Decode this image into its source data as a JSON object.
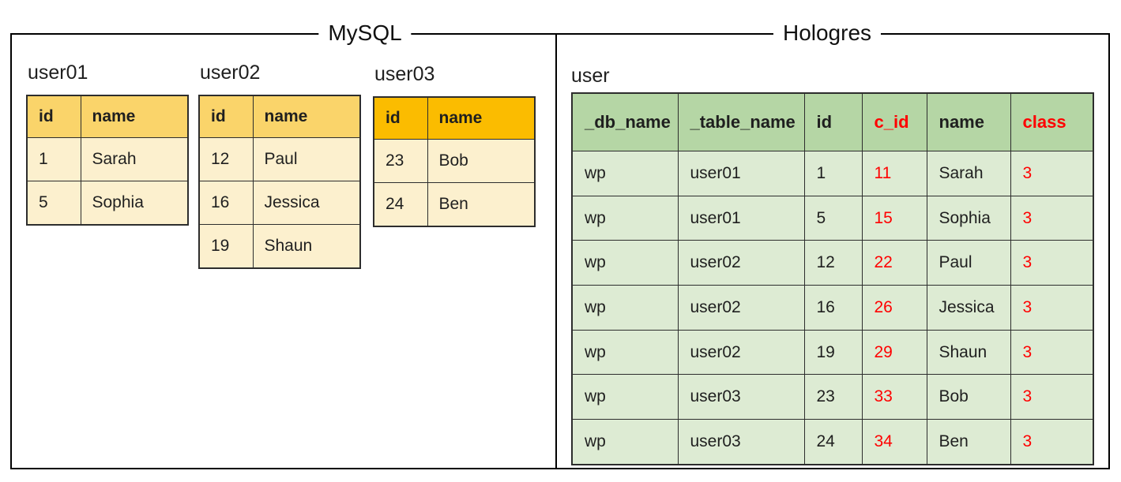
{
  "mysql": {
    "title": "MySQL",
    "tables": [
      {
        "name": "user01",
        "header_style": "light",
        "columns": [
          "id",
          "name"
        ],
        "rows": [
          [
            "1",
            "Sarah"
          ],
          [
            "5",
            "Sophia"
          ]
        ]
      },
      {
        "name": "user02",
        "header_style": "light",
        "columns": [
          "id",
          "name"
        ],
        "rows": [
          [
            "12",
            "Paul"
          ],
          [
            "16",
            "Jessica"
          ],
          [
            "19",
            "Shaun"
          ]
        ]
      },
      {
        "name": "user03",
        "header_style": "dark",
        "columns": [
          "id",
          "name"
        ],
        "rows": [
          [
            "23",
            "Bob"
          ],
          [
            "24",
            "Ben"
          ]
        ]
      }
    ]
  },
  "hologres": {
    "title": "Hologres",
    "table": {
      "name": "user",
      "columns": [
        {
          "label": "_db_name",
          "red": false
        },
        {
          "label": "_table_name",
          "red": false
        },
        {
          "label": "id",
          "red": false
        },
        {
          "label": "c_id",
          "red": true
        },
        {
          "label": "name",
          "red": false
        },
        {
          "label": "class",
          "red": true
        }
      ],
      "rows": [
        [
          "wp",
          "user01",
          "1",
          "11",
          "Sarah",
          "3"
        ],
        [
          "wp",
          "user01",
          "5",
          "15",
          "Sophia",
          "3"
        ],
        [
          "wp",
          "user02",
          "12",
          "22",
          "Paul",
          "3"
        ],
        [
          "wp",
          "user02",
          "16",
          "26",
          "Jessica",
          "3"
        ],
        [
          "wp",
          "user02",
          "19",
          "29",
          "Shaun",
          "3"
        ],
        [
          "wp",
          "user03",
          "23",
          "33",
          "Bob",
          "3"
        ],
        [
          "wp",
          "user03",
          "24",
          "34",
          "Ben",
          "3"
        ]
      ]
    }
  },
  "colors": {
    "mysql_header": "#FAD46A",
    "mysql_header_accent": "#FBBC00",
    "mysql_body": "#FCF0CE",
    "holo_header": "#B5D6A5",
    "holo_body": "#DDEBD3",
    "red": "#FF0000",
    "line": "#2D2D2D",
    "panel_border": "#000000",
    "text": "#1F1F1F"
  }
}
